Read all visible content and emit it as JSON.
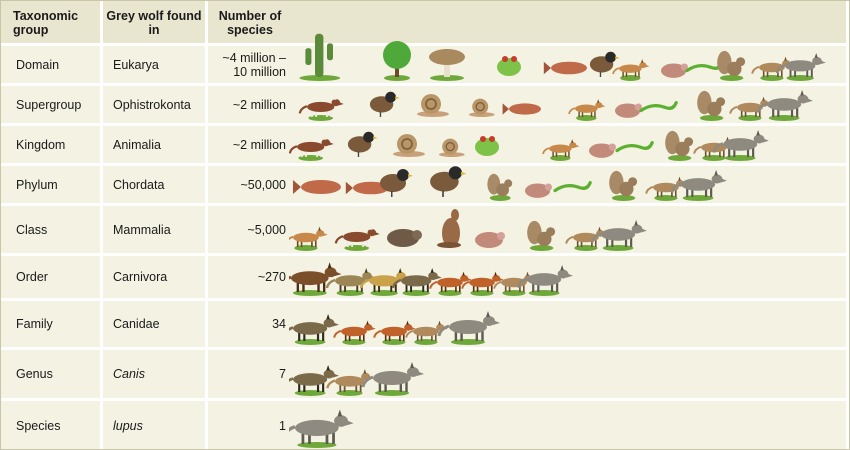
{
  "headers": {
    "rank": "Taxonomic group",
    "wolf": "Grey wolf found in",
    "count": "Number of species"
  },
  "rows": [
    {
      "rank": "Domain",
      "taxon": "Eukarya",
      "count": "~4 million – 10 million",
      "count_line1": "~4 million –",
      "count_line2": "10 million",
      "italic": false
    },
    {
      "rank": "Supergroup",
      "taxon": "Ophistrokonta",
      "count": "~2 million",
      "italic": false
    },
    {
      "rank": "Kingdom",
      "taxon": "Animalia",
      "count": "~2 million",
      "italic": false
    },
    {
      "rank": "Phylum",
      "taxon": "Chordata",
      "count": "~50,000",
      "italic": false
    },
    {
      "rank": "Class",
      "taxon": "Mammalia",
      "count": "~5,000",
      "italic": false
    },
    {
      "rank": "Order",
      "taxon": "Carnivora",
      "count": "~270",
      "italic": false
    },
    {
      "rank": "Family",
      "taxon": "Canidae",
      "count": "34",
      "italic": false
    },
    {
      "rank": "Genus",
      "taxon": "Canis",
      "count": "7",
      "italic": true
    },
    {
      "rank": "Species",
      "taxon": "lupus",
      "count": "1",
      "italic": true
    }
  ],
  "illustration": {
    "icons": [
      "cactus-icon",
      "tree-icon",
      "mushroom-icon",
      "bird-icon",
      "snail-icon",
      "frog-icon",
      "fish-icon",
      "lizard-icon",
      "squirrel-icon",
      "mouse-icon",
      "antelope-icon",
      "cow-icon",
      "beaver-icon",
      "kangaroo-icon",
      "bear-icon",
      "hyena-icon",
      "cheetah-icon",
      "fox-icon",
      "wild-dog-icon",
      "jackal-icon",
      "wolf-icon"
    ],
    "colors": {
      "header": "#e9e6cf",
      "row": "#f4f2e2",
      "divider": "#ffffff",
      "wolf": "#8a8478",
      "grass": "#6ea83a"
    }
  }
}
